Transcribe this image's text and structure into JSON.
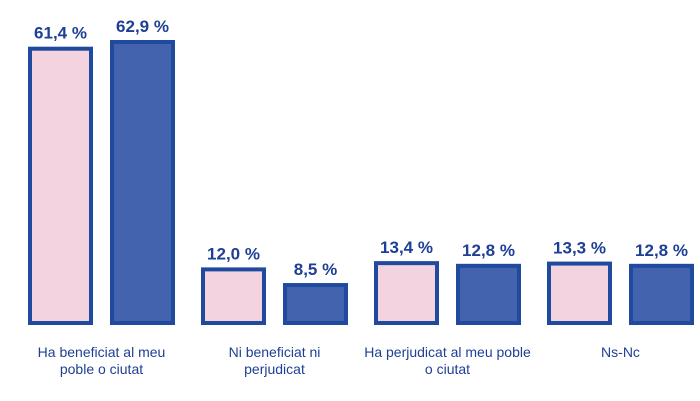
{
  "chart_data": {
    "type": "bar",
    "categories": [
      "Ha beneficiat al meu poble o ciutat",
      "Ni beneficiat ni perjudicat",
      "Ha perjudicat al meu poble o ciutat",
      "Ns-Nc"
    ],
    "series": [
      {
        "color": "#f3d3df",
        "values": [
          61.4,
          12.0,
          13.4,
          13.3
        ],
        "value_labels": [
          "61,4 %",
          "12,0 %",
          "13,4 %",
          "13,3 %"
        ]
      },
      {
        "color": "#4363ae",
        "values": [
          62.9,
          8.5,
          12.8,
          12.8
        ],
        "value_labels": [
          "62,9 %",
          "8,5 %",
          "12,8 %",
          "12,8 %"
        ]
      }
    ],
    "border_color": "#1f4a9e"
  }
}
